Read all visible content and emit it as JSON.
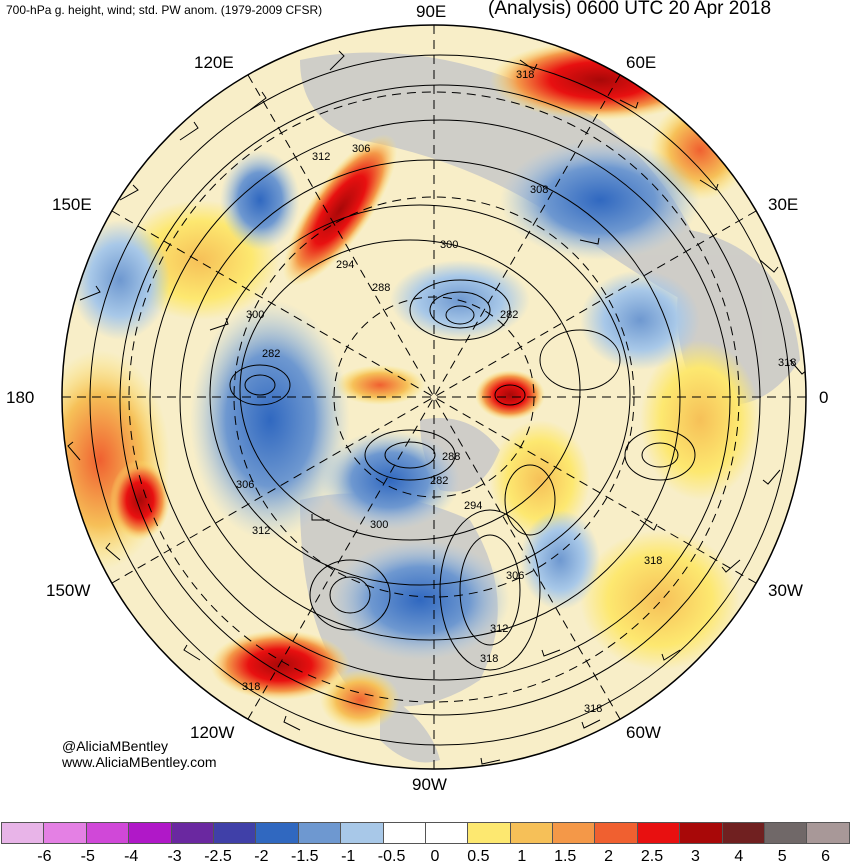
{
  "header": {
    "left_title": "700-hPa g. height, wind; std. PW anom. (1979-2009 CFSR)",
    "right_title": "(Analysis) 0600 UTC 20 Apr 2018"
  },
  "credits": {
    "twitter": "@AliciaMBentley",
    "website": "www.AliciaMBentley.com"
  },
  "map": {
    "projection": "north-polar-stereographic",
    "longitude_labels": [
      {
        "text": "90E",
        "lon": 90
      },
      {
        "text": "60E",
        "lon": 60
      },
      {
        "text": "30E",
        "lon": 30
      },
      {
        "text": "0",
        "lon": 0
      },
      {
        "text": "30W",
        "lon": -30
      },
      {
        "text": "60W",
        "lon": -60
      },
      {
        "text": "90W",
        "lon": -90
      },
      {
        "text": "120W",
        "lon": -120
      },
      {
        "text": "150W",
        "lon": -150
      },
      {
        "text": "180",
        "lon": 180
      },
      {
        "text": "150E",
        "lon": 150
      },
      {
        "text": "120E",
        "lon": 120
      }
    ],
    "height_contour_labels": [
      "318",
      "312",
      "306",
      "308",
      "300",
      "294",
      "288",
      "282",
      "300",
      "282",
      "306",
      "312",
      "300",
      "288",
      "282",
      "294",
      "306",
      "312",
      "318",
      "318",
      "318",
      "318"
    ],
    "colors": {
      "ocean_background": "#ffffff",
      "land": "#c8c8c8",
      "contour": "#000000"
    }
  },
  "colorbar": {
    "colors": [
      "#e8b4e8",
      "#e480e4",
      "#d048d8",
      "#b018c8",
      "#6a28a0",
      "#4040a8",
      "#3068c0",
      "#6e98d0",
      "#a8c8e8",
      "#ffffff",
      "#ffffff",
      "#fde870",
      "#f6c058",
      "#f49848",
      "#f06030",
      "#e81010",
      "#a80808",
      "#702020",
      "#706868",
      "#a89898"
    ],
    "labels": [
      "-6",
      "-5",
      "-4",
      "-3",
      "-2.5",
      "-2",
      "-1.5",
      "-1",
      "-0.5",
      "0",
      "0.5",
      "1",
      "1.5",
      "2",
      "2.5",
      "3",
      "4",
      "5",
      "6"
    ]
  }
}
